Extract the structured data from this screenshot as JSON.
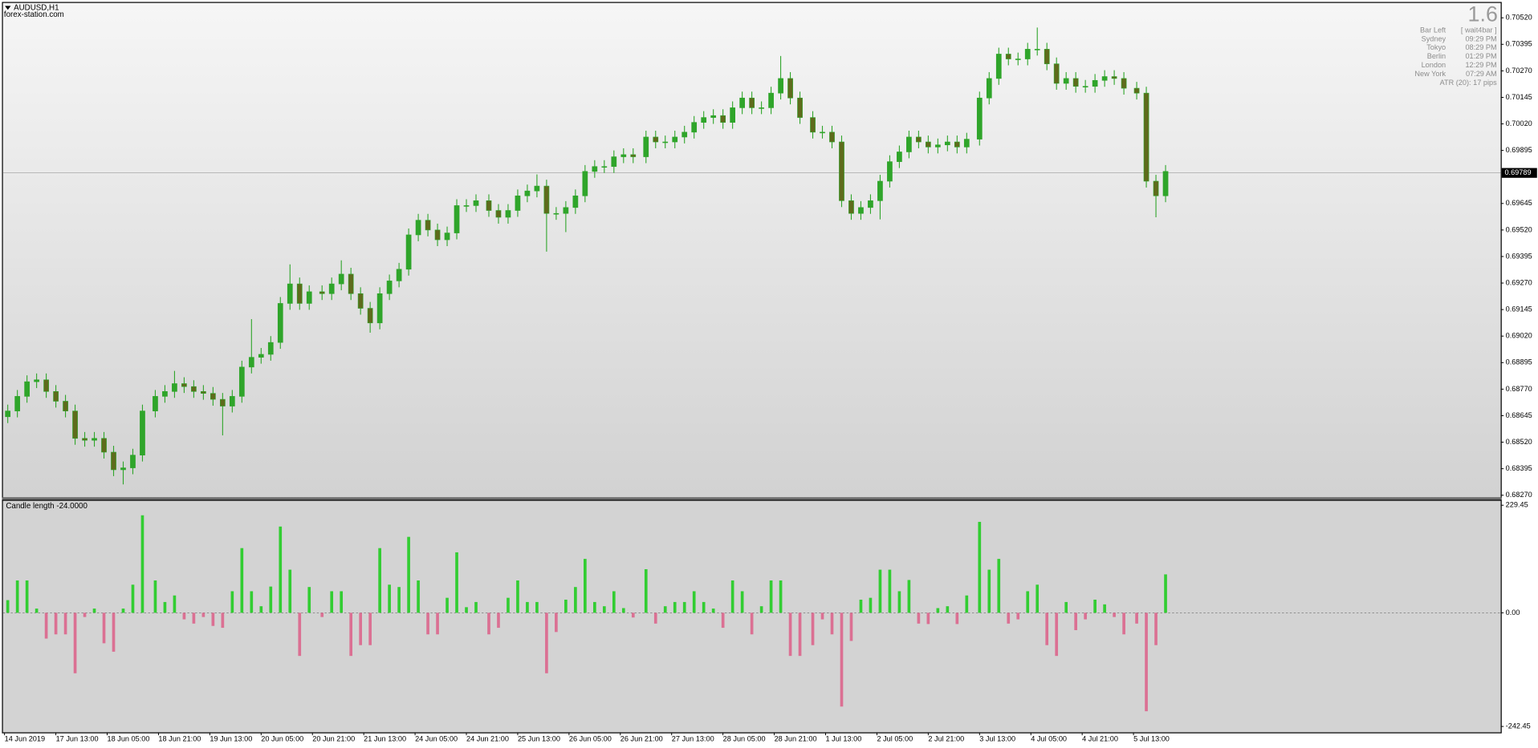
{
  "chart_data": [
    {
      "type": "candlestick",
      "title": "AUDUSD,H1",
      "subtitle": "forex-station.com",
      "bull_color": "#2fa52a",
      "bear_color": "#5e6b1c",
      "grid": false,
      "xlim": [
        -0.5,
        466.5
      ],
      "ylim": [
        0.6826,
        0.7059
      ],
      "yticks": [
        {
          "value": 0.7052,
          "label": "0.70520"
        },
        0.70395,
        {
          "value": 0.7027,
          "label": "0.70270"
        },
        0.70145,
        {
          "value": 0.7002,
          "label": "0.70020"
        },
        0.69895,
        0.69645,
        {
          "value": 0.6952,
          "label": "0.69520"
        },
        0.69395,
        {
          "value": 0.6927,
          "label": "0.69270"
        },
        0.69145,
        {
          "value": 0.6902,
          "label": "0.69020"
        },
        0.68895,
        {
          "value": 0.6877,
          "label": "0.68770"
        },
        0.68645,
        {
          "value": 0.6852,
          "label": "0.68520"
        },
        0.68395,
        {
          "value": 0.6827,
          "label": "0.68270"
        }
      ],
      "current_price": 0.69789,
      "x": [
        1,
        4,
        7,
        10,
        13,
        16,
        19,
        22,
        25,
        28,
        31,
        34,
        37,
        40,
        43,
        47,
        50,
        53,
        56,
        59,
        62,
        65,
        68,
        71,
        74,
        77,
        80,
        83,
        86,
        89,
        92,
        95,
        99,
        102,
        105,
        108,
        111,
        114,
        117,
        120,
        123,
        126,
        129,
        132,
        135,
        138,
        141,
        144,
        147,
        151,
        154,
        157,
        160,
        163,
        166,
        169,
        172,
        175,
        178,
        181,
        184,
        187,
        190,
        193,
        196,
        200,
        203,
        206,
        209,
        212,
        215,
        218,
        221,
        224,
        227,
        230,
        233,
        236,
        239,
        242,
        245,
        248,
        252,
        255,
        258,
        261,
        264,
        267,
        270,
        273,
        276,
        279,
        282,
        285,
        288,
        291,
        294,
        297,
        300,
        304,
        307,
        310,
        313,
        316,
        319,
        322,
        325,
        328,
        331,
        334,
        337,
        340,
        343,
        346,
        349,
        353,
        356,
        359,
        362
      ],
      "open": [
        0.6864,
        0.68667,
        0.68736,
        0.68805,
        0.68814,
        0.68759,
        0.68713,
        0.68667,
        0.68538,
        0.68529,
        0.68538,
        0.68473,
        0.6839,
        0.68399,
        0.68459,
        0.68667,
        0.68736,
        0.68759,
        0.68796,
        0.68782,
        0.68759,
        0.6875,
        0.68722,
        0.6869,
        0.68736,
        0.68874,
        0.6892,
        0.68934,
        0.6899,
        0.69174,
        0.69266,
        0.69174,
        0.69229,
        0.6922,
        0.69266,
        0.69312,
        0.6922,
        0.69151,
        0.69082,
        0.6922,
        0.6928,
        0.69335,
        0.69497,
        0.69566,
        0.6952,
        0.69474,
        0.69506,
        0.69635,
        0.69635,
        0.69658,
        0.69612,
        0.6958,
        0.69612,
        0.69681,
        0.69704,
        0.69727,
        0.69598,
        0.69598,
        0.69626,
        0.69681,
        0.69796,
        0.69819,
        0.69819,
        0.69865,
        0.69875,
        0.69865,
        0.69958,
        0.69935,
        0.69935,
        0.69958,
        0.69981,
        0.70027,
        0.7005,
        0.70059,
        0.70027,
        0.70096,
        0.70142,
        0.70096,
        0.70096,
        0.70165,
        0.70234,
        0.70142,
        0.7005,
        0.69981,
        0.69981,
        0.69935,
        0.69658,
        0.69598,
        0.69626,
        0.69658,
        0.6975,
        0.69842,
        0.69888,
        0.69958,
        0.69935,
        0.69911,
        0.69921,
        0.69935,
        0.69911,
        0.69948,
        0.70142,
        0.70234,
        0.70349,
        0.70326,
        0.70326,
        0.70372,
        0.70372,
        0.70303,
        0.70211,
        0.70234,
        0.70197,
        0.70197,
        0.70225,
        0.70243,
        0.70234,
        0.70188,
        0.70165,
        0.6975,
        0.69681
      ],
      "high": [
        0.68697,
        0.68766,
        0.68835,
        0.68844,
        0.68844,
        0.68789,
        0.68743,
        0.68697,
        0.68568,
        0.68568,
        0.68568,
        0.68503,
        0.68429,
        0.68489,
        0.68697,
        0.68766,
        0.68789,
        0.68856,
        0.68826,
        0.68812,
        0.68789,
        0.6878,
        0.68752,
        0.68766,
        0.68904,
        0.691,
        0.68964,
        0.6902,
        0.69204,
        0.69358,
        0.69296,
        0.69259,
        0.69259,
        0.69296,
        0.69377,
        0.69342,
        0.6925,
        0.69181,
        0.6925,
        0.6931,
        0.69365,
        0.69527,
        0.69596,
        0.69596,
        0.6955,
        0.69536,
        0.69665,
        0.69665,
        0.69688,
        0.69688,
        0.69642,
        0.69642,
        0.69711,
        0.69734,
        0.69782,
        0.69757,
        0.69628,
        0.69656,
        0.69711,
        0.69826,
        0.69849,
        0.69849,
        0.69895,
        0.69905,
        0.69905,
        0.69988,
        0.69988,
        0.69965,
        0.69988,
        0.70011,
        0.70057,
        0.7008,
        0.70089,
        0.70089,
        0.70126,
        0.70172,
        0.70172,
        0.70126,
        0.70195,
        0.7034,
        0.70264,
        0.70172,
        0.7008,
        0.70011,
        0.70011,
        0.69965,
        0.69688,
        0.69656,
        0.69688,
        0.6978,
        0.69872,
        0.69918,
        0.69988,
        0.69988,
        0.69965,
        0.69951,
        0.69965,
        0.69965,
        0.69978,
        0.70172,
        0.70264,
        0.70379,
        0.70379,
        0.70356,
        0.70402,
        0.70474,
        0.70402,
        0.70333,
        0.70264,
        0.70264,
        0.70227,
        0.70255,
        0.70273,
        0.70273,
        0.70264,
        0.70218,
        0.70195,
        0.6978,
        0.69826
      ],
      "low": [
        0.6861,
        0.68637,
        0.68706,
        0.68775,
        0.68729,
        0.68683,
        0.68637,
        0.68508,
        0.68499,
        0.68499,
        0.68443,
        0.6836,
        0.68321,
        0.68369,
        0.68429,
        0.68637,
        0.68706,
        0.68729,
        0.68752,
        0.68729,
        0.6872,
        0.68692,
        0.68552,
        0.6866,
        0.68706,
        0.68844,
        0.6889,
        0.68904,
        0.6896,
        0.69144,
        0.69144,
        0.69144,
        0.6919,
        0.6919,
        0.69236,
        0.6919,
        0.69121,
        0.69036,
        0.69052,
        0.6919,
        0.6925,
        0.69305,
        0.69467,
        0.6949,
        0.69444,
        0.69444,
        0.69476,
        0.69605,
        0.69605,
        0.69582,
        0.6955,
        0.6955,
        0.69582,
        0.69651,
        0.69674,
        0.69418,
        0.69568,
        0.6951,
        0.69596,
        0.69651,
        0.69766,
        0.69789,
        0.69789,
        0.69835,
        0.69835,
        0.69835,
        0.69905,
        0.69905,
        0.69905,
        0.69928,
        0.69951,
        0.69997,
        0.7002,
        0.69997,
        0.69997,
        0.70066,
        0.70066,
        0.70066,
        0.70066,
        0.70135,
        0.70112,
        0.7002,
        0.69951,
        0.69951,
        0.69905,
        0.69628,
        0.69568,
        0.69568,
        0.69596,
        0.6957,
        0.6972,
        0.69812,
        0.69858,
        0.69905,
        0.69881,
        0.69881,
        0.69891,
        0.69881,
        0.69881,
        0.69918,
        0.70112,
        0.70204,
        0.70296,
        0.70296,
        0.70296,
        0.70342,
        0.70273,
        0.70181,
        0.70181,
        0.70167,
        0.70167,
        0.70167,
        0.70195,
        0.70204,
        0.70158,
        0.70135,
        0.6972,
        0.6958,
        0.69651
      ],
      "close": [
        0.68667,
        0.68736,
        0.68805,
        0.68814,
        0.68759,
        0.68713,
        0.68667,
        0.68538,
        0.68529,
        0.68538,
        0.68473,
        0.6839,
        0.68399,
        0.68459,
        0.68667,
        0.68736,
        0.68759,
        0.68796,
        0.68782,
        0.68759,
        0.6875,
        0.68722,
        0.6869,
        0.68736,
        0.68874,
        0.6892,
        0.68934,
        0.6899,
        0.69174,
        0.69266,
        0.69174,
        0.69229,
        0.6922,
        0.69266,
        0.69312,
        0.6922,
        0.69151,
        0.69082,
        0.6922,
        0.6928,
        0.69335,
        0.69497,
        0.69566,
        0.6952,
        0.69474,
        0.69506,
        0.69635,
        0.69635,
        0.69658,
        0.69612,
        0.6958,
        0.69612,
        0.69681,
        0.69704,
        0.69727,
        0.69598,
        0.69598,
        0.69626,
        0.69681,
        0.69796,
        0.69819,
        0.69819,
        0.69865,
        0.69875,
        0.69865,
        0.69958,
        0.69935,
        0.69935,
        0.69958,
        0.69981,
        0.70027,
        0.7005,
        0.70059,
        0.70027,
        0.70096,
        0.70142,
        0.70096,
        0.70096,
        0.70165,
        0.70234,
        0.70142,
        0.7005,
        0.69981,
        0.69981,
        0.69935,
        0.69658,
        0.69598,
        0.69626,
        0.69658,
        0.6975,
        0.69842,
        0.69888,
        0.69958,
        0.69935,
        0.69911,
        0.69921,
        0.69935,
        0.69911,
        0.69948,
        0.70142,
        0.70234,
        0.70349,
        0.70326,
        0.70326,
        0.70372,
        0.70372,
        0.70303,
        0.70211,
        0.70234,
        0.70197,
        0.70197,
        0.70225,
        0.70243,
        0.70234,
        0.70188,
        0.70165,
        0.6975,
        0.69681,
        0.69796
      ]
    },
    {
      "type": "bar",
      "title": "Candle length -24.0000",
      "positive_color": "#32cd32",
      "negative_color": "#db7093",
      "xlim": [
        -0.5,
        466.5
      ],
      "ylim": [
        -255,
        240
      ],
      "yticks": [
        229.45,
        {
          "value": 0,
          "label": "0.00"
        },
        -242.45
      ],
      "xticks": [
        {
          "value": 0,
          "label": "14 Jun 2019"
        },
        {
          "value": 16,
          "label": "17 Jun 13:00"
        },
        {
          "value": 32,
          "label": "18 Jun 05:00"
        },
        {
          "value": 48,
          "label": "18 Jun 21:00"
        },
        {
          "value": 64,
          "label": "19 Jun 13:00"
        },
        {
          "value": 80,
          "label": "20 Jun 05:00"
        },
        {
          "value": 96,
          "label": "20 Jun 21:00"
        },
        {
          "value": 112,
          "label": "21 Jun 13:00"
        },
        {
          "value": 128,
          "label": "24 Jun 05:00"
        },
        {
          "value": 144,
          "label": "24 Jun 21:00"
        },
        {
          "value": 160,
          "label": "25 Jun 13:00"
        },
        {
          "value": 176,
          "label": "26 Jun 05:00"
        },
        {
          "value": 192,
          "label": "26 Jun 21:00"
        },
        {
          "value": 208,
          "label": "27 Jun 13:00"
        },
        {
          "value": 224,
          "label": "28 Jun 05:00"
        },
        {
          "value": 240,
          "label": "28 Jun 21:00"
        },
        {
          "value": 256,
          "label": "1 Jul 13:00"
        },
        {
          "value": 272,
          "label": "2 Jul 05:00"
        },
        {
          "value": 288,
          "label": "2 Jul 21:00"
        },
        {
          "value": 304,
          "label": "3 Jul 13:00"
        },
        {
          "value": 320,
          "label": "4 Jul 05:00"
        },
        {
          "value": 336,
          "label": "4 Jul 21:00"
        },
        {
          "value": 352,
          "label": "5 Jul 13:00"
        }
      ],
      "values": [
        27,
        69,
        69,
        9,
        -55,
        -46,
        -46,
        -129,
        -9,
        9,
        -65,
        -83,
        9,
        60,
        208,
        69,
        23,
        37,
        -14,
        -23,
        -9,
        -28,
        -32,
        46,
        138,
        46,
        14,
        56,
        184,
        92,
        -92,
        55,
        -9,
        46,
        46,
        -92,
        -69,
        -69,
        138,
        60,
        55,
        162,
        69,
        -46,
        -46,
        32,
        129,
        12,
        23,
        -46,
        -32,
        32,
        69,
        23,
        23,
        -129,
        -41,
        28,
        55,
        115,
        23,
        14,
        46,
        10,
        -10,
        93,
        -23,
        14,
        23,
        23,
        46,
        23,
        9,
        -32,
        69,
        46,
        -46,
        14,
        69,
        69,
        -92,
        -92,
        -69,
        -14,
        -46,
        -200,
        -60,
        28,
        32,
        92,
        92,
        46,
        70,
        -23,
        -24,
        10,
        14,
        -24,
        37,
        194,
        92,
        115,
        -23,
        -14,
        46,
        60,
        -69,
        -92,
        23,
        -37,
        -14,
        28,
        18,
        -9,
        -46,
        -23,
        -210,
        -69,
        82
      ]
    }
  ],
  "info_panel": {
    "spread": "1.6",
    "bar_left_label": "Bar Left",
    "bar_left_value": "[ wait4bar ]",
    "cities": [
      {
        "name": "Sydney",
        "time": "09:29 PM"
      },
      {
        "name": "Tokyo",
        "time": "08:29 PM"
      },
      {
        "name": "Berlin",
        "time": "01:29 PM"
      },
      {
        "name": "London",
        "time": "12:29 PM"
      },
      {
        "name": "New York",
        "time": "07:29 AM"
      }
    ],
    "atr": "ATR (20): 17 pips"
  }
}
